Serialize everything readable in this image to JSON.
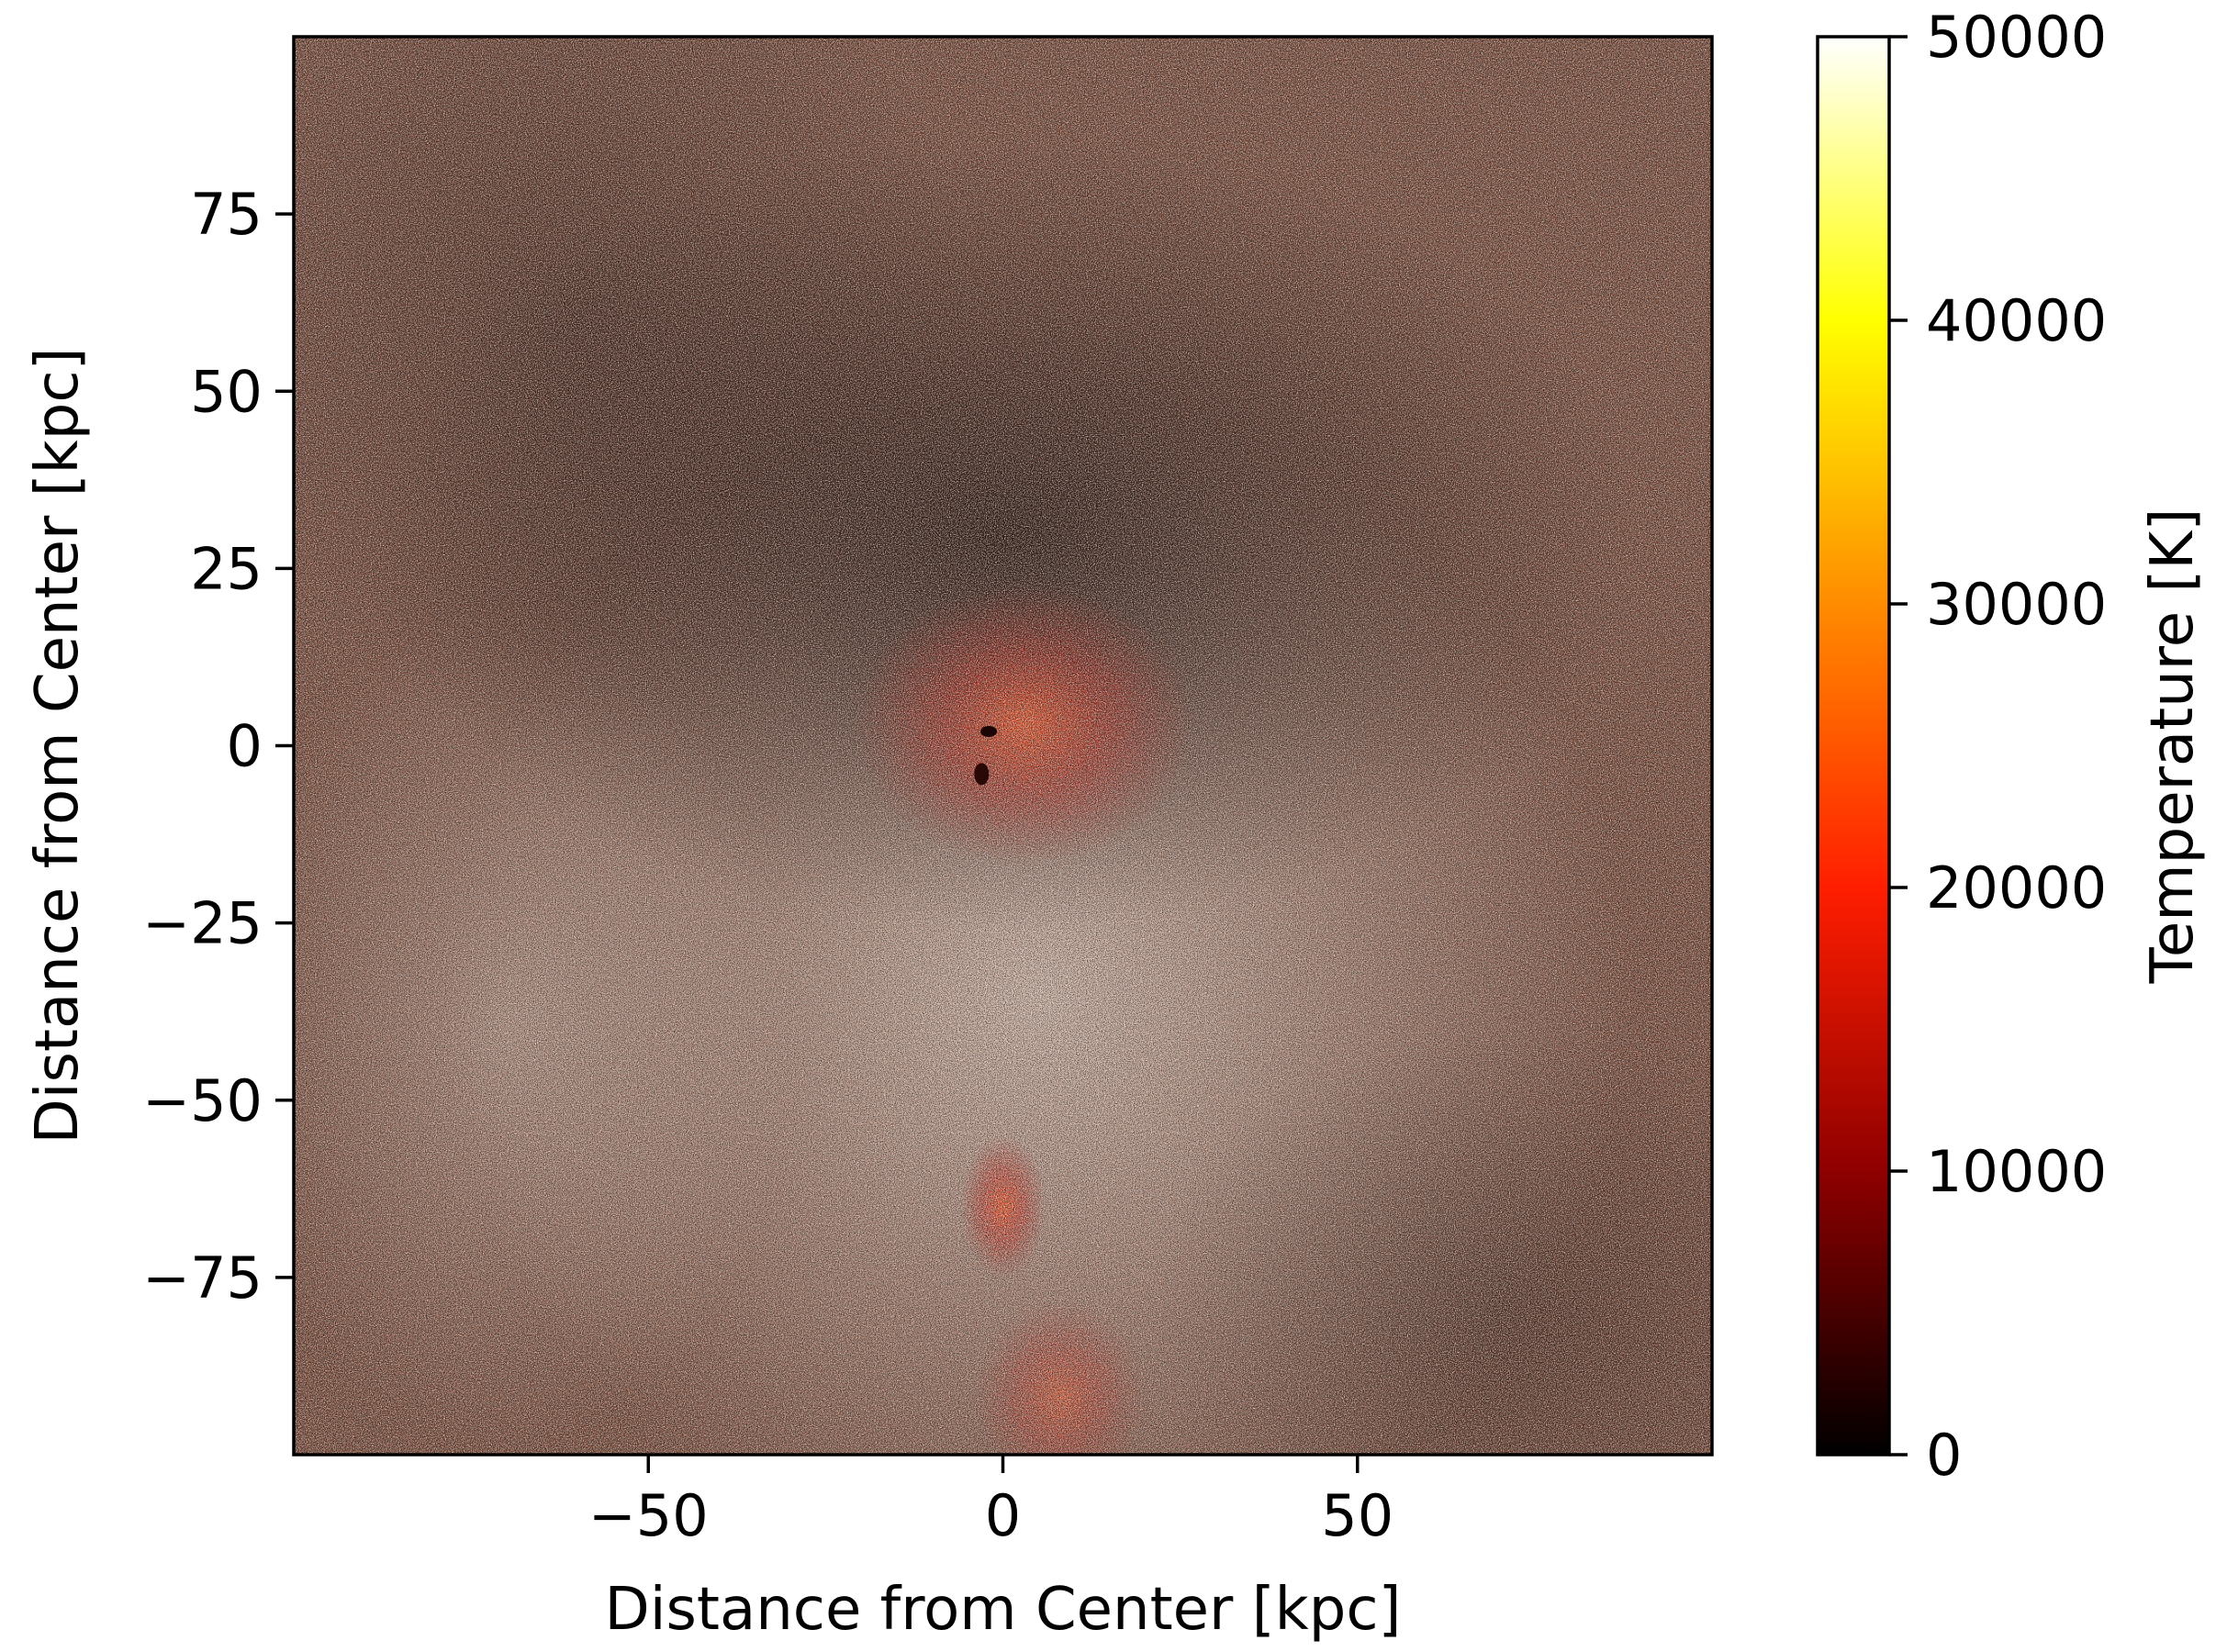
{
  "chart_data": {
    "type": "heatmap",
    "title": "",
    "xlabel": "Distance from Center [kpc]",
    "ylabel": "Distance from Center [kpc]",
    "xlim": [
      -100,
      100
    ],
    "ylim": [
      -100,
      100
    ],
    "xticks": [
      -50,
      0,
      50
    ],
    "xtick_labels": [
      "−50",
      "0",
      "50"
    ],
    "yticks": [
      75,
      50,
      25,
      0,
      -25,
      -50,
      -75
    ],
    "ytick_labels": [
      "75",
      "50",
      "25",
      "0",
      "−25",
      "−50",
      "−75"
    ],
    "grid": false,
    "colorbar": {
      "label": "Temperature [K]",
      "colormap": "hot",
      "range": [
        0,
        50000
      ],
      "ticks": [
        0,
        10000,
        20000,
        30000,
        40000,
        50000
      ],
      "tick_labels": [
        "0",
        "10000",
        "20000",
        "30000",
        "40000",
        "50000"
      ],
      "colors": [
        "#000000",
        "#8f0000",
        "#ff1e00",
        "#ff8c00",
        "#ffff00",
        "#ffffff"
      ]
    },
    "features": [
      {
        "name": "central hot clump",
        "x": 0,
        "y": 0,
        "temperature_K": 20000
      },
      {
        "name": "southern hot filament",
        "x": 0,
        "y": -65,
        "temperature_K": 18000
      },
      {
        "name": "cool region",
        "x": 0,
        "y": 30,
        "temperature_K": 5000
      }
    ]
  }
}
